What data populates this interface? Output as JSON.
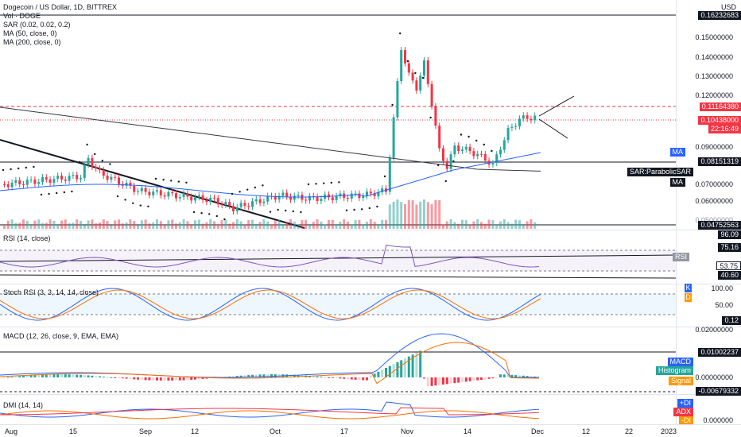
{
  "main_pane": {
    "legend": [
      "Dogecoin / US Dollar, 1D, BITTREX",
      "Vol · DOGE",
      "SAR (0.02, 0.02, 0.2)",
      "MA (50, close, 0)",
      "MA (200, close, 0)"
    ],
    "currency": "USD",
    "ticks": [
      "0.15000000",
      "0.14000000",
      "0.13000000",
      "0.12000000",
      "0.09000000",
      "0.07000000",
      "0.06000000",
      "0.05000000"
    ],
    "tags": {
      "top_line": "0.16232683",
      "resistance": "0.11164380",
      "last_price": "0.10438000",
      "countdown": "22:16:49",
      "ma_badge": "MA",
      "support": "0.08151319",
      "sar_badge": "SAR:ParabolicSAR",
      "ma2_badge": "MA",
      "bottom_line": "0.04752563"
    }
  },
  "rsi_pane": {
    "legend": "RSI (14, close)",
    "tags": [
      "96.09",
      "75.16",
      "RSI",
      "53.75",
      "40.60"
    ]
  },
  "stoch_pane": {
    "legend": "Stoch RSI (3, 3, 14, 14, close)",
    "tags": [
      "K",
      "100.00",
      "D",
      "50.00",
      "0.12"
    ]
  },
  "macd_pane": {
    "legend": "MACD (12, 26, close, 9, EMA, EMA)",
    "tags": [
      "0.02000000",
      "0.01002237",
      "MACD",
      "Histogram",
      "0.00000000",
      "Signal",
      "-0.00679332"
    ]
  },
  "dmi_pane": {
    "legend": "DMI (14, 14)",
    "tags": [
      "+DI",
      "ADX",
      "0.000000",
      "-DI"
    ]
  },
  "time_axis": [
    "Aug",
    "15",
    "Sep",
    "12",
    "Oct",
    "17",
    "Nov",
    "14",
    "Dec",
    "12",
    "22",
    "2023"
  ],
  "colors": {
    "up": "#26a69a",
    "down": "#f23645",
    "ma50": "#2962ff",
    "ma200": "#363a45",
    "macd": "#2962ff",
    "signal": "#ff6d00",
    "pdi": "#2962ff",
    "mdi": "#ff6d00",
    "adx": "#f23645"
  }
}
